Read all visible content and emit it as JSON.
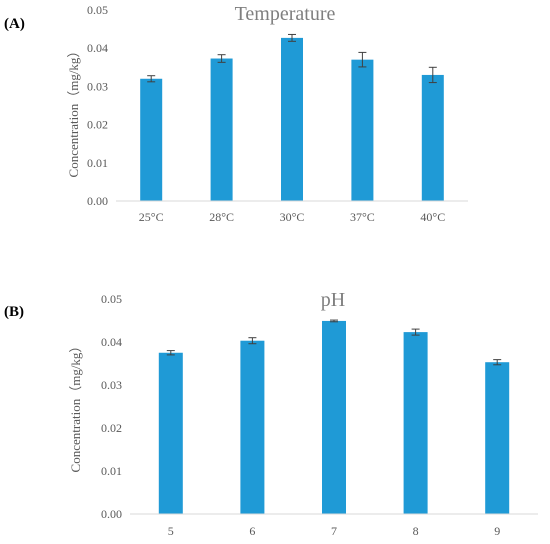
{
  "chart_data": [
    {
      "type": "bar",
      "panel_label": "(A)",
      "title": "Temperature",
      "ylabel": "Concentration（mg/kg）",
      "categories": [
        "25°C",
        "28°C",
        "30°C",
        "37°C",
        "40°C"
      ],
      "values": [
        0.032,
        0.0373,
        0.0427,
        0.037,
        0.033
      ],
      "errors": [
        0.0008,
        0.001,
        0.0009,
        0.0019,
        0.002
      ],
      "ylim": [
        0,
        0.05
      ],
      "yticks": [
        "0.00",
        "0.01",
        "0.02",
        "0.03",
        "0.04",
        "0.05"
      ],
      "color": "#1f9ad6",
      "grid": false
    },
    {
      "type": "bar",
      "panel_label": "(B)",
      "title": "pH",
      "ylabel": "Concentration（mg/kg）",
      "categories": [
        "5",
        "6",
        "7",
        "8",
        "9"
      ],
      "values": [
        0.0375,
        0.0403,
        0.0449,
        0.0423,
        0.0353
      ],
      "errors": [
        0.0005,
        0.0007,
        0.0002,
        0.0007,
        0.0006
      ],
      "ylim": [
        0,
        0.05
      ],
      "yticks": [
        "0.00",
        "0.01",
        "0.02",
        "0.03",
        "0.04",
        "0.05"
      ],
      "color": "#1f9ad6",
      "grid": false
    }
  ]
}
